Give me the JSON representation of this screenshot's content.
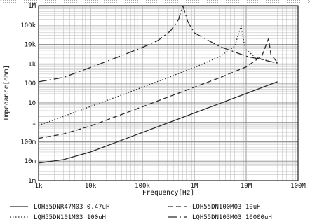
{
  "chart_data": {
    "type": "line",
    "xscale": "log",
    "yscale": "log",
    "xlim": [
      1000,
      100000000
    ],
    "ylim": [
      0.001,
      1000000
    ],
    "xlabel": "Frequency[Hz]",
    "ylabel": "Impedance[ohm]",
    "grid": true,
    "legend_position": "bottom",
    "x_ticks": [
      {
        "value": 1000,
        "label": "1k"
      },
      {
        "value": 10000,
        "label": "10k"
      },
      {
        "value": 100000,
        "label": "100k"
      },
      {
        "value": 1000000,
        "label": "1M"
      },
      {
        "value": 10000000,
        "label": "10M"
      },
      {
        "value": 100000000,
        "label": "100M"
      }
    ],
    "y_ticks": [
      {
        "value": 0.001,
        "label": "1m"
      },
      {
        "value": 0.01,
        "label": "10m"
      },
      {
        "value": 0.1,
        "label": "100m"
      },
      {
        "value": 1,
        "label": "1"
      },
      {
        "value": 10,
        "label": "10"
      },
      {
        "value": 100,
        "label": "100"
      },
      {
        "value": 1000,
        "label": "1k"
      },
      {
        "value": 10000,
        "label": "10k"
      },
      {
        "value": 100000,
        "label": "100k"
      },
      {
        "value": 1000000,
        "label": "1M"
      }
    ],
    "series": [
      {
        "name": "LQH55DNR47M03  0.47uH",
        "style": "solid",
        "x": [
          1000,
          3000,
          10000,
          30000,
          100000,
          300000,
          1000000,
          3000000,
          10000000,
          40000000
        ],
        "y": [
          0.008,
          0.012,
          0.03,
          0.09,
          0.3,
          0.9,
          3,
          9,
          30,
          120
        ]
      },
      {
        "name": "LQH55DN100M03  10uH",
        "style": "dashed",
        "x": [
          1000,
          3000,
          10000,
          30000,
          100000,
          300000,
          1000000,
          3000000,
          10000000,
          20000000,
          27000000,
          30000000,
          40000000
        ],
        "y": [
          0.15,
          0.25,
          0.65,
          1.9,
          6.3,
          19,
          63,
          190,
          700,
          2500,
          20000,
          3000,
          1200
        ]
      },
      {
        "name": "LQH55DN101M03  100uH",
        "style": "dotted",
        "x": [
          1000,
          3000,
          10000,
          30000,
          100000,
          300000,
          1000000,
          3000000,
          6000000,
          8000000,
          9500000,
          15000000,
          30000000,
          40000000
        ],
        "y": [
          0.7,
          2,
          6.5,
          19,
          63,
          190,
          650,
          2300,
          8000,
          90000,
          6000,
          2200,
          1300,
          1200
        ]
      },
      {
        "name": "LQH55DN103M03  10000uH",
        "style": "dashdot",
        "x": [
          1000,
          3000,
          10000,
          30000,
          100000,
          200000,
          350000,
          500000,
          600000,
          750000,
          1000000,
          3000000,
          10000000,
          40000000
        ],
        "y": [
          120,
          200,
          650,
          2000,
          7000,
          16000,
          50000,
          200000,
          1000000,
          150000,
          40000,
          8000,
          2500,
          1100
        ]
      }
    ]
  }
}
